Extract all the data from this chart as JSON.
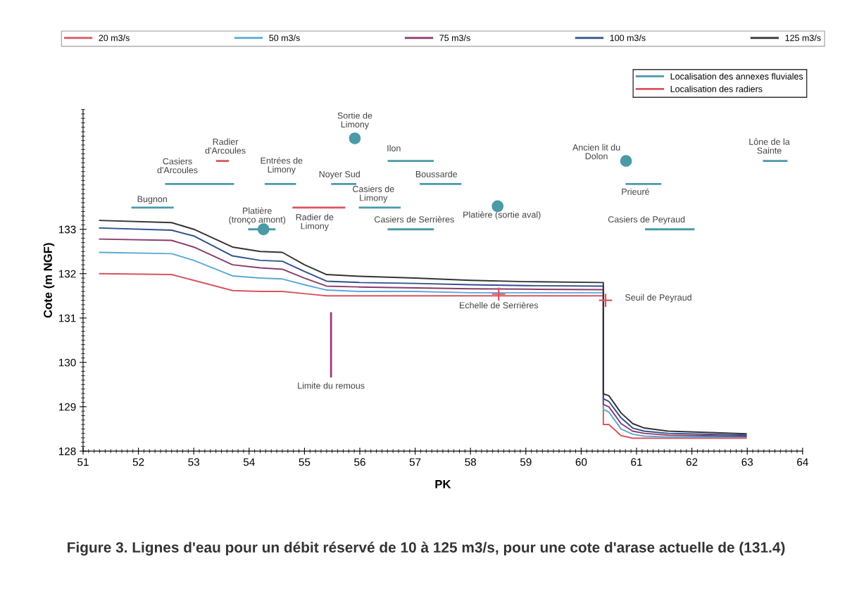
{
  "chart_data": {
    "type": "line",
    "title": "Figure 3. Lignes d'eau pour un débit réservé de 10 à 125 m3/s, pour une cote d'arase actuelle de (131.4)",
    "xlabel": "PK",
    "ylabel": "Cote (m NGF)",
    "x": [
      51.3,
      52.6,
      53.0,
      53.7,
      54.2,
      54.6,
      55.0,
      55.4,
      56.0,
      57.0,
      58.0,
      59.0,
      60.4,
      60.4,
      60.5,
      60.72,
      60.93,
      61.14,
      61.57,
      62.98
    ],
    "series": [
      {
        "name": "20 m3/s",
        "color": "#d9545f",
        "values": [
          132.0,
          131.98,
          131.85,
          131.62,
          131.6,
          131.6,
          131.55,
          131.5,
          131.5,
          131.5,
          131.5,
          131.5,
          131.5,
          128.6,
          128.6,
          128.35,
          128.29,
          128.29,
          128.29,
          128.29
        ]
      },
      {
        "name": "50 m3/s",
        "color": "#5aa9d6",
        "values": [
          132.48,
          132.45,
          132.3,
          131.95,
          131.9,
          131.88,
          131.75,
          131.63,
          131.6,
          131.6,
          131.57,
          131.57,
          131.57,
          128.94,
          128.88,
          128.5,
          128.38,
          128.34,
          128.32,
          128.31
        ]
      },
      {
        "name": "75 m3/s",
        "color": "#8b3a6a",
        "values": [
          132.78,
          132.75,
          132.6,
          132.2,
          132.13,
          132.1,
          131.9,
          131.72,
          131.7,
          131.68,
          131.66,
          131.65,
          131.64,
          129.05,
          129.0,
          128.62,
          128.45,
          128.4,
          128.36,
          128.33
        ]
      },
      {
        "name": "100 m3/s",
        "color": "#2f4f8f",
        "values": [
          133.03,
          132.98,
          132.85,
          132.4,
          132.3,
          132.28,
          132.05,
          131.83,
          131.8,
          131.78,
          131.75,
          131.73,
          131.72,
          129.18,
          129.12,
          128.75,
          128.52,
          128.45,
          128.4,
          128.36
        ]
      },
      {
        "name": "125 m3/s",
        "color": "#333333",
        "values": [
          133.2,
          133.15,
          133.0,
          132.6,
          132.5,
          132.48,
          132.2,
          131.98,
          131.94,
          131.9,
          131.85,
          131.82,
          131.8,
          129.29,
          129.25,
          128.86,
          128.62,
          128.52,
          128.45,
          128.39
        ]
      },
      {
        "name": "Localisation des annexes fluviales",
        "color": "#4a9aa8",
        "x": [
          51.89,
          52.62
        ],
        "values": [
          133.49,
          133.49
        ]
      },
      {
        "color": "#4a9aa8",
        "x": [
          52.5,
          53.71
        ],
        "values": [
          134.02,
          134.02
        ]
      },
      {
        "color": "#4a9aa8",
        "x": [
          54.3,
          54.83
        ],
        "values": [
          134.02,
          134.02
        ]
      },
      {
        "color": "#4a9aa8",
        "x": [
          55.5,
          55.92
        ],
        "values": [
          134.02,
          134.02
        ]
      },
      {
        "color": "#4a9aa8",
        "x": [
          56.0,
          56.72
        ],
        "values": [
          133.49,
          133.49
        ]
      },
      {
        "color": "#4a9aa8",
        "x": [
          56.52,
          57.32
        ],
        "values": [
          134.54,
          134.54
        ]
      },
      {
        "color": "#4a9aa8",
        "x": [
          57.1,
          57.82
        ],
        "values": [
          134.02,
          134.02
        ]
      },
      {
        "color": "#4a9aa8",
        "x": [
          56.52,
          57.32
        ],
        "values": [
          133.0,
          133.0
        ]
      },
      {
        "color": "#4a9aa8",
        "x": [
          54.0,
          54.46
        ],
        "values": [
          133.0,
          133.0
        ]
      },
      {
        "color": "#4a9aa8",
        "x": [
          60.82,
          61.43
        ],
        "values": [
          134.02,
          134.02
        ]
      },
      {
        "color": "#4a9aa8",
        "x": [
          61.17,
          62.03
        ],
        "values": [
          133.0,
          133.0
        ]
      },
      {
        "color": "#4a9aa8",
        "x": [
          63.3,
          63.71
        ],
        "values": [
          134.54,
          134.54
        ]
      },
      {
        "name": "Localisation des radiers",
        "color": "#d9545f",
        "x": [
          53.42,
          53.62
        ],
        "values": [
          134.54,
          134.54
        ]
      },
      {
        "color": "#d9545f",
        "x": [
          54.8,
          55.72
        ],
        "values": [
          133.49,
          133.49
        ]
      },
      {
        "type": "scatter",
        "marker": "circle",
        "color": "#4a9aa8",
        "x": [
          55.91,
          54.26,
          58.49,
          60.81
        ],
        "values": [
          135.05,
          133.0,
          133.52,
          134.54
        ]
      },
      {
        "type": "scatter",
        "marker": "cross",
        "color": "#d9545f",
        "x": [
          58.51,
          60.44
        ],
        "values": [
          131.54,
          131.4
        ]
      },
      {
        "color": "#9b3a78",
        "x": [
          55.48,
          55.48
        ],
        "values": [
          131.11,
          129.68
        ]
      }
    ],
    "annotations": [
      {
        "text": "Bugnon",
        "x": 52.25,
        "y": 133.49
      },
      {
        "text": "Casiers\nd'Arcoules",
        "x": 53.1,
        "y": 134.02
      },
      {
        "text": "Radier\nd'Arcoules",
        "x": 53.52,
        "y": 134.54
      },
      {
        "text": "Entrées de\nLimony",
        "x": 54.56,
        "y": 134.02
      },
      {
        "text": "Sortie de\nLimony",
        "x": 55.91,
        "y": 135.05
      },
      {
        "text": "Noyer Sud",
        "x": 55.71,
        "y": 134.02
      },
      {
        "text": "Ilon",
        "x": 56.92,
        "y": 134.54
      },
      {
        "text": "Casiers de\nLimony",
        "x": 56.36,
        "y": 133.49
      },
      {
        "text": "Boussarde",
        "x": 57.46,
        "y": 134.02
      },
      {
        "text": "Platière\n(tronço amont)",
        "x": 54.26,
        "y": 133.0
      },
      {
        "text": "Radier de\nLimony",
        "x": 55.26,
        "y": 133.49
      },
      {
        "text": "Casiers de Serrières",
        "x": 56.92,
        "y": 133.0
      },
      {
        "text": "Platière (sortie aval)",
        "x": 58.49,
        "y": 133.52
      },
      {
        "text": "Ancien lit du\nDolon",
        "x": 60.81,
        "y": 134.54
      },
      {
        "text": "Prieuré",
        "x": 61.12,
        "y": 134.02
      },
      {
        "text": "Casiers de Peyraud",
        "x": 61.6,
        "y": 133.0
      },
      {
        "text": "Lône de la\nSainte",
        "x": 63.5,
        "y": 134.54
      },
      {
        "text": "Echelle de Serrières",
        "x": 58.51,
        "y": 131.54
      },
      {
        "text": "Seuil de Peyraud",
        "x": 60.44,
        "y": 131.4
      },
      {
        "text": "Limite du remous",
        "x": 55.48,
        "y": 129.68
      }
    ],
    "xlim": [
      51,
      64
    ],
    "xticks": [
      51,
      52,
      53,
      54,
      55,
      56,
      57,
      58,
      59,
      60,
      61,
      62,
      63,
      64
    ],
    "ylim": [
      128,
      135.7
    ],
    "yticks": [
      128,
      129,
      130,
      131,
      132,
      133
    ],
    "grid": false,
    "legend": "top"
  }
}
